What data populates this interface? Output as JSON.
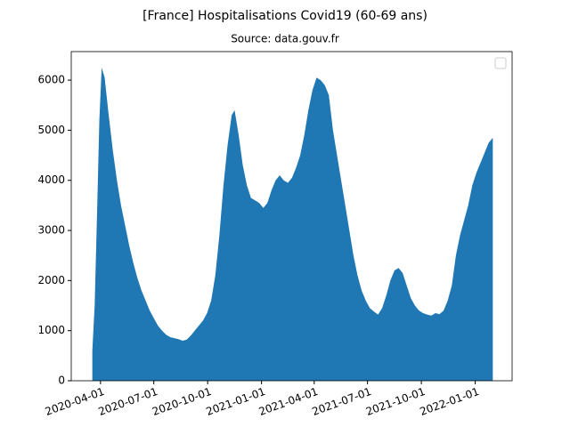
{
  "chart_data": {
    "type": "area",
    "title": "[France] Hospitalisations Covid19 (60-69 ans)",
    "subtitle": "Source: data.gouv.fr",
    "color": "#1f77b4",
    "legend": "upper right",
    "x": [
      "2020-03-18",
      "2020-03-22",
      "2020-03-26",
      "2020-03-30",
      "2020-04-03",
      "2020-04-08",
      "2020-04-15",
      "2020-04-22",
      "2020-04-29",
      "2020-05-06",
      "2020-05-13",
      "2020-05-20",
      "2020-05-27",
      "2020-06-03",
      "2020-06-10",
      "2020-06-17",
      "2020-06-24",
      "2020-07-01",
      "2020-07-08",
      "2020-07-15",
      "2020-07-22",
      "2020-07-29",
      "2020-08-05",
      "2020-08-12",
      "2020-08-19",
      "2020-08-26",
      "2020-09-02",
      "2020-09-09",
      "2020-09-16",
      "2020-09-23",
      "2020-09-30",
      "2020-10-07",
      "2020-10-14",
      "2020-10-21",
      "2020-10-28",
      "2020-11-04",
      "2020-11-11",
      "2020-11-16",
      "2020-11-23",
      "2020-11-30",
      "2020-12-07",
      "2020-12-14",
      "2020-12-21",
      "2020-12-28",
      "2021-01-04",
      "2021-01-11",
      "2021-01-18",
      "2021-01-25",
      "2021-02-01",
      "2021-02-08",
      "2021-02-15",
      "2021-02-22",
      "2021-03-01",
      "2021-03-08",
      "2021-03-15",
      "2021-03-22",
      "2021-03-29",
      "2021-04-05",
      "2021-04-12",
      "2021-04-19",
      "2021-04-26",
      "2021-05-03",
      "2021-05-10",
      "2021-05-17",
      "2021-05-24",
      "2021-05-31",
      "2021-06-07",
      "2021-06-14",
      "2021-06-21",
      "2021-06-28",
      "2021-07-05",
      "2021-07-12",
      "2021-07-19",
      "2021-07-26",
      "2021-08-02",
      "2021-08-09",
      "2021-08-16",
      "2021-08-23",
      "2021-08-30",
      "2021-09-06",
      "2021-09-13",
      "2021-09-20",
      "2021-09-27",
      "2021-10-04",
      "2021-10-11",
      "2021-10-18",
      "2021-10-25",
      "2021-11-01",
      "2021-11-08",
      "2021-11-15",
      "2021-11-22",
      "2021-11-29",
      "2021-12-06",
      "2021-12-13",
      "2021-12-20",
      "2021-12-27",
      "2022-01-03",
      "2022-01-10",
      "2022-01-17",
      "2022-01-24",
      "2022-01-31"
    ],
    "values": [
      600,
      1500,
      3300,
      5200,
      6250,
      6050,
      5300,
      4600,
      4000,
      3500,
      3100,
      2700,
      2350,
      2050,
      1800,
      1600,
      1400,
      1250,
      1100,
      1000,
      920,
      870,
      850,
      830,
      800,
      820,
      900,
      1000,
      1100,
      1200,
      1350,
      1600,
      2100,
      2900,
      3900,
      4700,
      5300,
      5400,
      4900,
      4300,
      3900,
      3650,
      3600,
      3550,
      3450,
      3550,
      3800,
      4000,
      4100,
      4000,
      3950,
      4050,
      4250,
      4500,
      4900,
      5400,
      5800,
      6050,
      6000,
      5900,
      5700,
      5000,
      4500,
      4000,
      3500,
      3000,
      2500,
      2100,
      1800,
      1600,
      1450,
      1380,
      1320,
      1450,
      1700,
      2000,
      2200,
      2250,
      2150,
      1900,
      1650,
      1500,
      1400,
      1350,
      1320,
      1300,
      1350,
      1330,
      1400,
      1600,
      1900,
      2500,
      2900,
      3200,
      3500,
      3900,
      4150,
      4350,
      4550,
      4750,
      4850
    ],
    "xlim": [
      "2020-02-11",
      "2022-03-05"
    ],
    "xticks": [
      "2020-04-01",
      "2020-07-01",
      "2020-10-01",
      "2021-01-01",
      "2021-04-01",
      "2021-07-01",
      "2021-10-01",
      "2022-01-01"
    ],
    "ylim": [
      0,
      6570
    ],
    "yticks": [
      0,
      1000,
      2000,
      3000,
      4000,
      5000,
      6000
    ]
  }
}
